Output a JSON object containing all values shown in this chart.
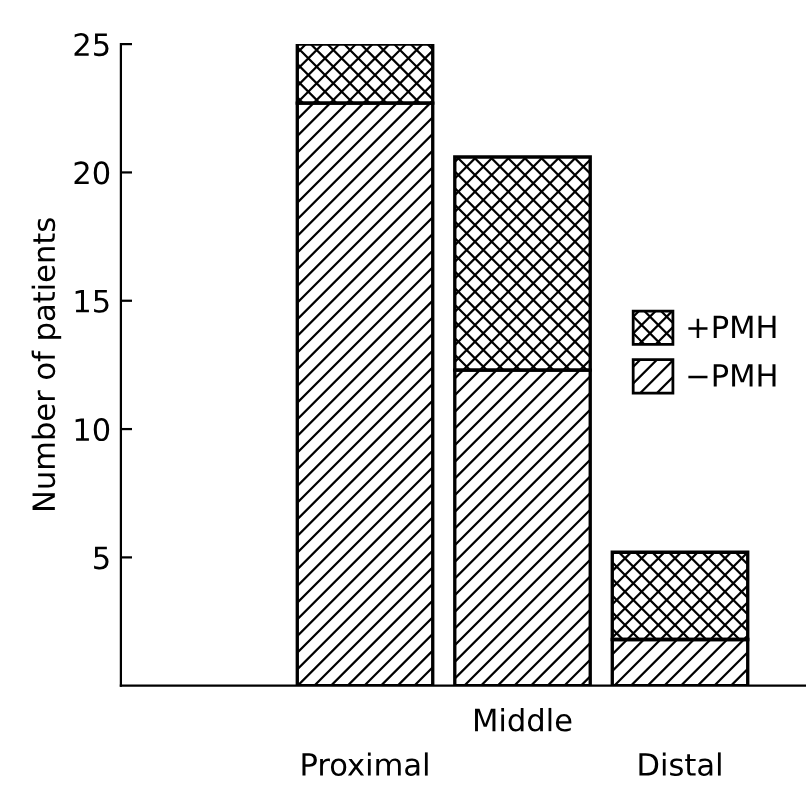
{
  "chart_data": {
    "type": "bar",
    "stacked": true,
    "ylabel": "Number of patients",
    "categories": [
      "Proximal",
      "Middle",
      "Distal"
    ],
    "series": [
      {
        "name": "−PMH",
        "color": "#000000",
        "values": [
          22.7,
          12.3,
          1.8
        ]
      },
      {
        "name": "+PMH",
        "color": "#000000",
        "values": [
          2.3,
          8.3,
          3.4
        ]
      }
    ],
    "ylim": [
      0,
      25
    ],
    "yticks": [
      5,
      10,
      15,
      20,
      25
    ],
    "grid": false,
    "legend": "right"
  }
}
